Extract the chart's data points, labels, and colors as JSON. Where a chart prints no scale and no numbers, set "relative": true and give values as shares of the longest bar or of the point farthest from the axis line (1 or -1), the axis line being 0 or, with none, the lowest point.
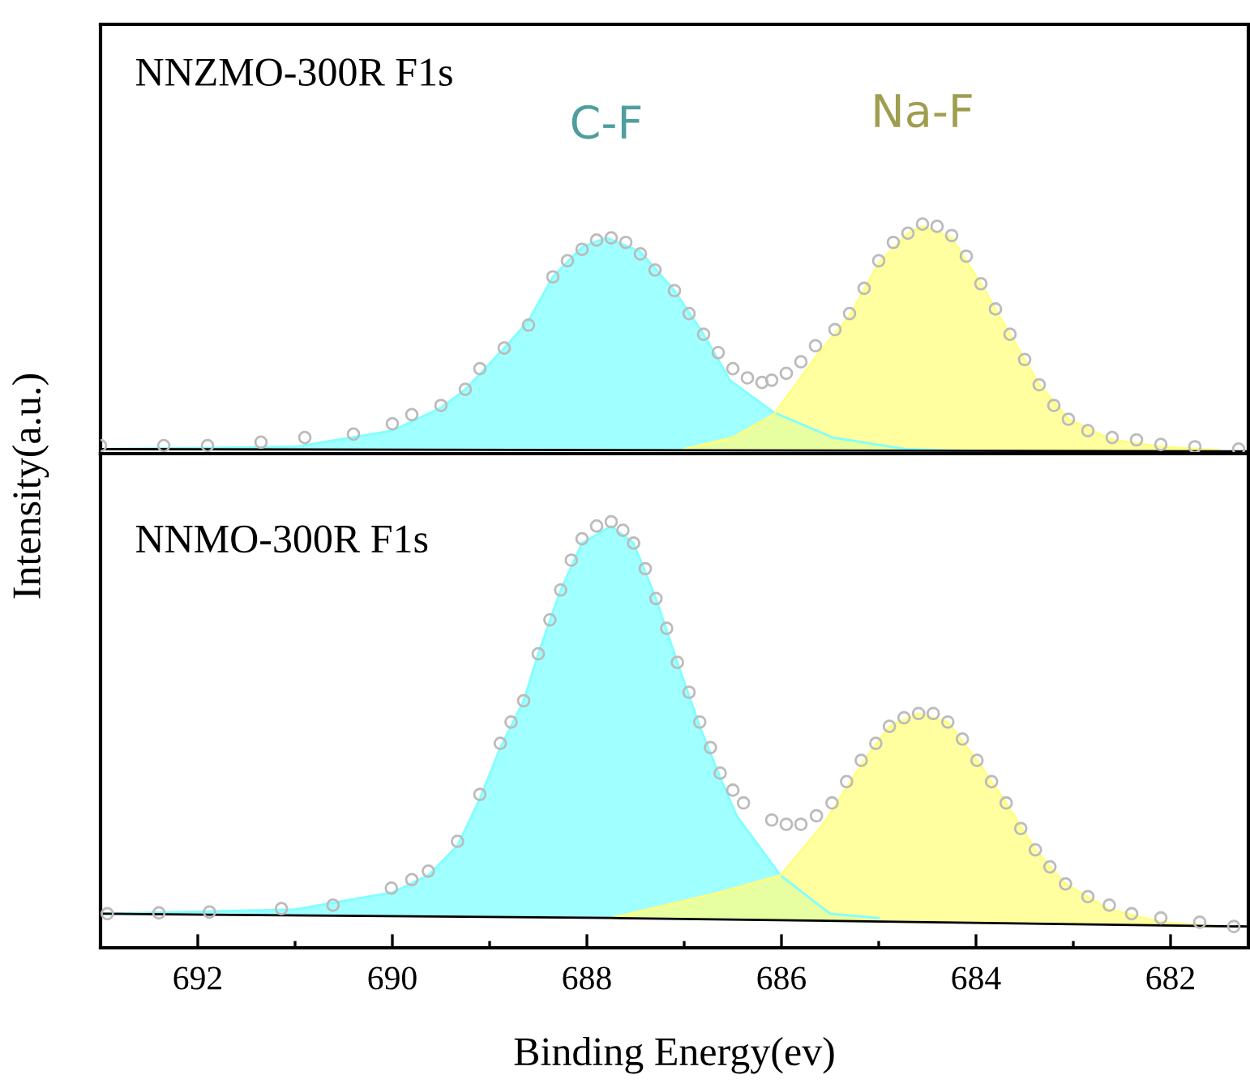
{
  "chart_data": [
    {
      "type": "area",
      "title": "NNZMO-300R F1s",
      "relative": true,
      "xlim": [
        693.0,
        681.2
      ],
      "tick_labels": false,
      "series": [
        {
          "name": "C-F",
          "color": "#80ffff",
          "x": [
            693.0,
            691.0,
            690.0,
            689.5,
            689.25,
            688.85,
            688.6,
            688.35,
            688.05,
            687.8,
            687.45,
            687.1,
            686.8,
            686.53,
            686.08,
            685.47,
            684.72,
            684.0
          ],
          "values": [
            0.02,
            0.03,
            0.1,
            0.2,
            0.28,
            0.46,
            0.58,
            0.77,
            0.9,
            0.94,
            0.88,
            0.71,
            0.52,
            0.32,
            0.18,
            0.07,
            0.02,
            0.01
          ]
        },
        {
          "name": "Na-F",
          "color": "#ffff80",
          "x": [
            687.0,
            686.5,
            686.08,
            685.65,
            685.3,
            685.0,
            684.7,
            684.55,
            684.25,
            683.95,
            683.65,
            683.35,
            683.05,
            682.6,
            682.1,
            681.5
          ],
          "values": [
            0.02,
            0.07,
            0.17,
            0.42,
            0.6,
            0.83,
            0.96,
            0.99,
            0.94,
            0.74,
            0.52,
            0.3,
            0.15,
            0.06,
            0.03,
            0.015
          ]
        },
        {
          "type": "line",
          "color": "#000000",
          "x": [
            693.0,
            681.2
          ],
          "values": [
            0.02,
            0.01
          ]
        },
        {
          "type": "scatter",
          "marker": "circle",
          "color": "#bbbbbb",
          "x": [
            693.0,
            692.35,
            691.9,
            691.35,
            690.9,
            690.4,
            690.0,
            689.8,
            689.5,
            689.25,
            689.1,
            688.85,
            688.6,
            688.35,
            688.2,
            688.05,
            687.9,
            687.75,
            687.6,
            687.45,
            687.3,
            687.1,
            686.95,
            686.8,
            686.65,
            686.5,
            686.35,
            686.2,
            686.1,
            685.95,
            685.8,
            685.65,
            685.45,
            685.3,
            685.15,
            685.0,
            684.85,
            684.7,
            684.55,
            684.4,
            684.25,
            684.1,
            683.95,
            683.8,
            683.65,
            683.5,
            683.35,
            683.2,
            683.05,
            682.85,
            682.6,
            682.35,
            682.1,
            681.75,
            681.3
          ],
          "values": [
            0.035,
            0.035,
            0.035,
            0.05,
            0.07,
            0.085,
            0.13,
            0.17,
            0.21,
            0.28,
            0.37,
            0.46,
            0.56,
            0.77,
            0.84,
            0.89,
            0.93,
            0.94,
            0.92,
            0.87,
            0.8,
            0.71,
            0.61,
            0.52,
            0.44,
            0.37,
            0.33,
            0.31,
            0.32,
            0.35,
            0.4,
            0.47,
            0.54,
            0.61,
            0.72,
            0.84,
            0.92,
            0.96,
            1.0,
            0.99,
            0.95,
            0.86,
            0.74,
            0.63,
            0.52,
            0.41,
            0.3,
            0.21,
            0.15,
            0.1,
            0.07,
            0.06,
            0.04,
            0.03,
            0.02
          ]
        }
      ]
    },
    {
      "type": "area",
      "title": "NNMO-300R F1s",
      "relative": true,
      "xlim": [
        693.0,
        681.2
      ],
      "xlabel": "Binding Energy(ev)",
      "ylabel": "Intensity(a.u.)",
      "tick_labels": "x",
      "xticks": [
        692,
        {
          "value": 691,
          "label": null
        },
        690,
        {
          "value": 689,
          "label": null
        },
        688,
        {
          "value": 687,
          "label": null
        },
        686,
        {
          "value": 685,
          "label": null
        },
        684,
        {
          "value": 683,
          "label": null
        },
        682
      ],
      "series": [
        {
          "color": "#80ffff",
          "x": [
            693.0,
            691.0,
            690.0,
            689.63,
            689.33,
            689.1,
            688.89,
            688.65,
            688.5,
            688.27,
            688.05,
            687.75,
            687.52,
            687.29,
            687.07,
            686.84,
            686.63,
            686.46,
            686.01,
            685.5,
            685.0
          ],
          "values": [
            0.08,
            0.09,
            0.13,
            0.17,
            0.24,
            0.35,
            0.47,
            0.58,
            0.69,
            0.84,
            0.95,
            0.99,
            0.95,
            0.82,
            0.67,
            0.52,
            0.4,
            0.31,
            0.17,
            0.08,
            0.07
          ]
        },
        {
          "color": "#ffff80",
          "x": [
            687.75,
            686.63,
            686.01,
            685.57,
            685.18,
            684.89,
            684.59,
            684.29,
            683.99,
            683.69,
            683.39,
            683.08,
            682.63,
            682.1,
            681.5
          ],
          "values": [
            0.07,
            0.13,
            0.17,
            0.29,
            0.43,
            0.52,
            0.55,
            0.53,
            0.44,
            0.34,
            0.23,
            0.15,
            0.09,
            0.06,
            0.05
          ]
        },
        {
          "type": "line",
          "color": "#000000",
          "x": [
            693.0,
            687.75,
            681.2
          ],
          "values": [
            0.08,
            0.07,
            0.05
          ]
        },
        {
          "type": "scatter",
          "marker": "circle",
          "color": "#bbbbbb",
          "x": [
            692.93,
            692.4,
            691.88,
            691.14,
            690.61,
            690.01,
            689.8,
            689.63,
            689.33,
            689.1,
            688.89,
            688.78,
            688.65,
            688.5,
            688.38,
            688.27,
            688.16,
            688.05,
            687.9,
            687.75,
            687.63,
            687.52,
            687.4,
            687.29,
            687.18,
            687.07,
            686.95,
            686.84,
            686.73,
            686.63,
            686.5,
            686.39,
            686.1,
            685.95,
            685.8,
            685.64,
            685.48,
            685.33,
            685.18,
            685.03,
            684.89,
            684.74,
            684.59,
            684.44,
            684.29,
            684.14,
            683.99,
            683.84,
            683.69,
            683.54,
            683.39,
            683.24,
            683.08,
            682.85,
            682.63,
            682.4,
            682.1,
            681.7,
            681.35
          ],
          "values": [
            0.08,
            0.082,
            0.084,
            0.092,
            0.1,
            0.14,
            0.16,
            0.18,
            0.25,
            0.36,
            0.48,
            0.53,
            0.58,
            0.69,
            0.77,
            0.84,
            0.91,
            0.96,
            0.99,
            1.0,
            0.98,
            0.95,
            0.89,
            0.82,
            0.75,
            0.67,
            0.6,
            0.53,
            0.47,
            0.41,
            0.37,
            0.34,
            0.3,
            0.29,
            0.29,
            0.31,
            0.34,
            0.39,
            0.44,
            0.48,
            0.52,
            0.54,
            0.55,
            0.55,
            0.53,
            0.49,
            0.44,
            0.39,
            0.34,
            0.28,
            0.23,
            0.19,
            0.15,
            0.12,
            0.1,
            0.08,
            0.07,
            0.06,
            0.05
          ]
        }
      ]
    }
  ]
}
